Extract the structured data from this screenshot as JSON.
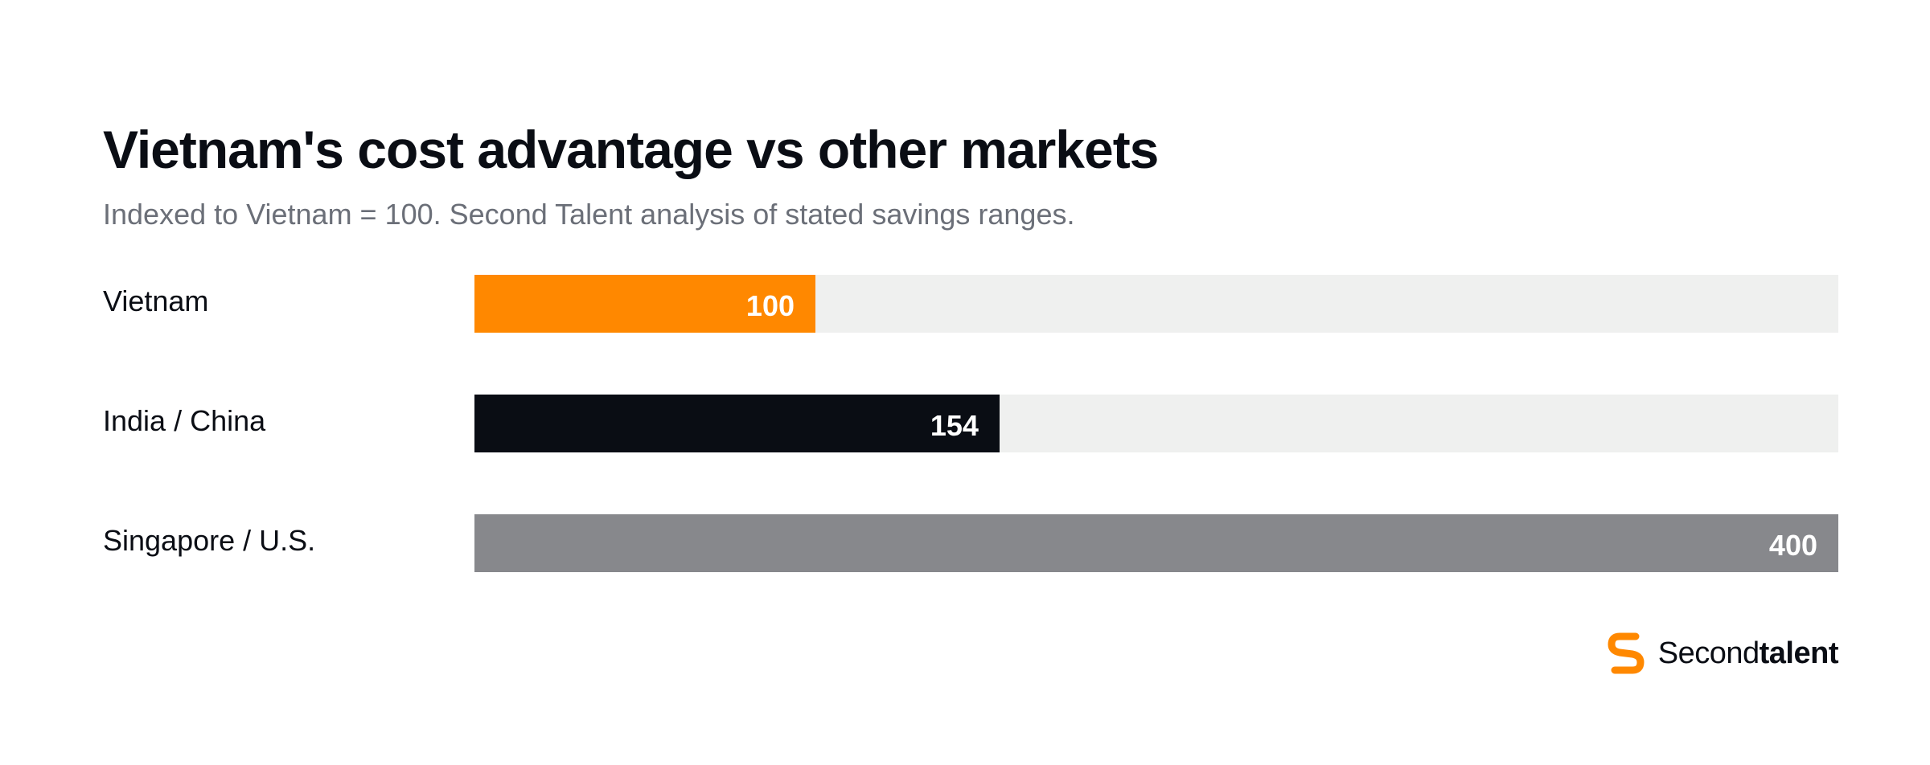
{
  "title": "Vietnam's cost advantage vs other markets",
  "subtitle": "Indexed to Vietnam = 100. Second Talent analysis of stated savings ranges.",
  "brand": {
    "name_light": "Second",
    "name_bold": "talent",
    "icon": "second-talent-logo-icon"
  },
  "colors": {
    "vietnam": "#ff8800",
    "india_china": "#0a0d14",
    "singapore_us": "#87888c",
    "track": "#eff0ef"
  },
  "chart_data": {
    "type": "bar",
    "orientation": "horizontal",
    "title": "Vietnam's cost advantage vs other markets",
    "subtitle": "Indexed to Vietnam = 100. Second Talent analysis of stated savings ranges.",
    "categories": [
      "Vietnam",
      "India / China",
      "Singapore / U.S."
    ],
    "values": [
      100,
      154,
      400
    ],
    "value_labels": [
      "100",
      "154",
      "400"
    ],
    "bar_colors": [
      "#ff8800",
      "#0a0d14",
      "#87888c"
    ],
    "xlim": [
      0,
      400
    ],
    "grid": false,
    "legend": "none"
  }
}
